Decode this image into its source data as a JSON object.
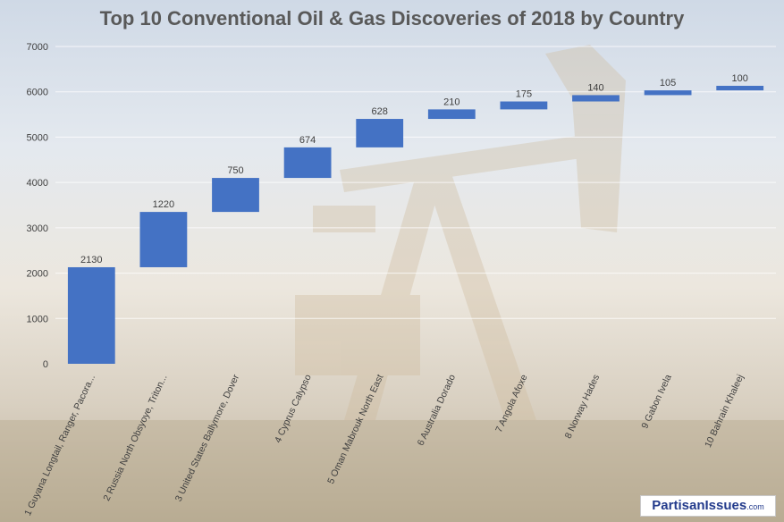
{
  "chart_data": {
    "type": "waterfall",
    "title": "Top 10 Conventional Oil & Gas Discoveries of 2018 by Country",
    "xlabel": "",
    "ylabel": "",
    "ylim": [
      0,
      7000
    ],
    "yticks": [
      "0",
      "1000",
      "2000",
      "3000",
      "4000",
      "5000",
      "6000",
      "7000"
    ],
    "grid": true,
    "legend": "none",
    "bar_color": "#4472c4",
    "categories": [
      "1 Guyana Longtail, Ranger, Pacora...",
      "2 Russia North Obsyoye, Triton...",
      "3 United States Ballymore, Dover",
      "4 Cyprus Calypso",
      "5 Oman Mabrouk North East",
      "6 Australia Dorado",
      "7 Angola Afoxe",
      "8 Norway Hades",
      "9 Gabon Ivela",
      "10 Bahrain Khaleej"
    ],
    "values": [
      2130,
      1220,
      750,
      674,
      628,
      210,
      175,
      140,
      105,
      100
    ],
    "data_labels": [
      "2130",
      "1220",
      "750",
      "674",
      "628",
      "210",
      "175",
      "140",
      "105",
      "100"
    ]
  },
  "watermark": {
    "brand": "PartisanIssues",
    "suffix": ".com"
  }
}
